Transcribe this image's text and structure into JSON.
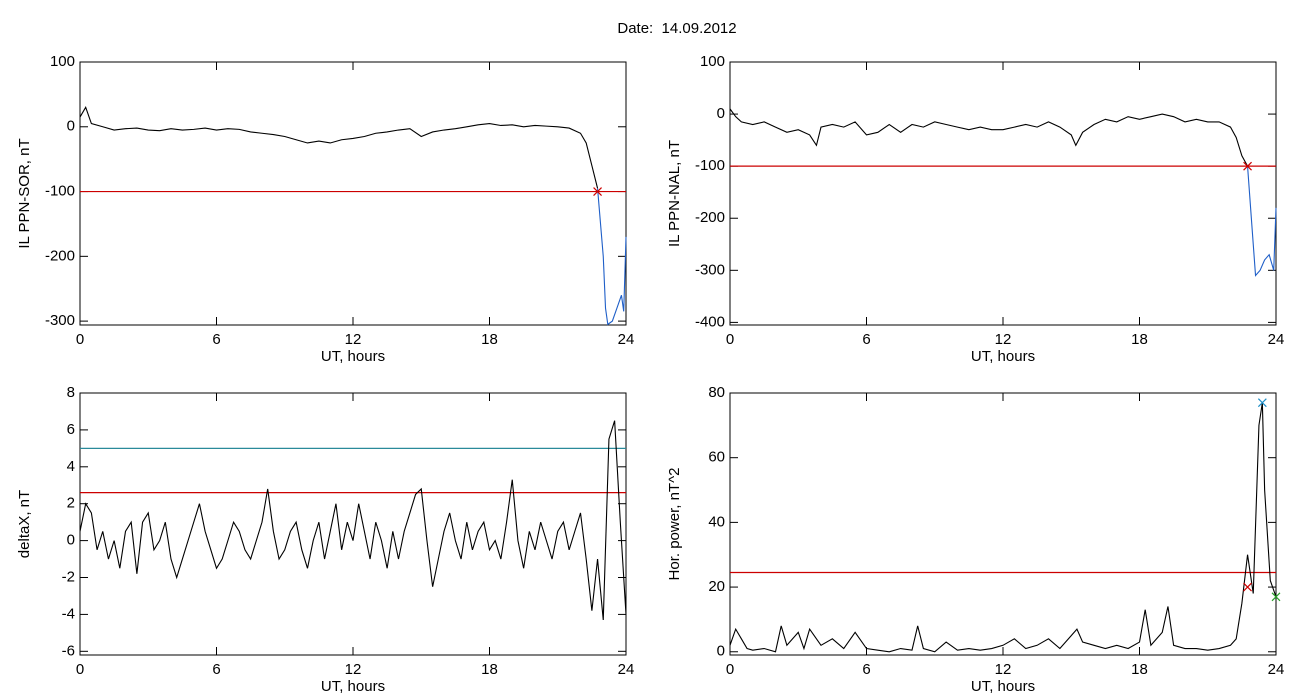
{
  "title": "Date:  14.09.2012",
  "chart_data": [
    {
      "type": "line",
      "xlabel": "UT, hours",
      "ylabel": "IL PPN-SOR, nT",
      "xlim": [
        0,
        24
      ],
      "ylim": [
        -306,
        100
      ],
      "xticks": [
        0,
        6,
        12,
        18,
        24
      ],
      "yticks": [
        -300,
        -200,
        -100,
        0,
        100
      ],
      "series": [
        {
          "color": "#000000",
          "x": [
            0,
            0.25,
            0.5,
            1,
            1.5,
            2,
            2.5,
            3,
            3.5,
            4,
            4.5,
            5,
            5.5,
            6,
            6.5,
            7,
            7.5,
            8,
            8.5,
            9,
            9.5,
            10,
            10.5,
            11,
            11.5,
            12,
            12.5,
            13,
            13.5,
            14,
            14.5,
            15,
            15.5,
            16,
            16.5,
            17,
            17.5,
            18,
            18.5,
            19,
            19.5,
            20,
            20.5,
            21,
            21.5,
            22,
            22.25,
            22.5,
            22.75
          ],
          "values": [
            15,
            30,
            5,
            0,
            -5,
            -3,
            -2,
            -5,
            -6,
            -3,
            -5,
            -4,
            -2,
            -5,
            -3,
            -4,
            -8,
            -10,
            -12,
            -15,
            -20,
            -25,
            -22,
            -25,
            -20,
            -18,
            -15,
            -10,
            -8,
            -5,
            -3,
            -15,
            -8,
            -5,
            -3,
            0,
            3,
            5,
            2,
            3,
            0,
            2,
            1,
            0,
            -2,
            -10,
            -25,
            -60,
            -95
          ]
        },
        {
          "color": "#1f5fc8",
          "x": [
            22.75,
            23,
            23.1,
            23.2,
            23.4,
            23.6,
            23.8,
            23.9,
            24
          ],
          "values": [
            -95,
            -200,
            -280,
            -305,
            -300,
            -280,
            -260,
            -285,
            -170
          ]
        }
      ],
      "hlines": [
        {
          "value": -100,
          "color": "#cc0000"
        }
      ],
      "markers": [
        {
          "x": 22.75,
          "y": -100,
          "color": "#cc0000"
        }
      ]
    },
    {
      "type": "line",
      "xlabel": "UT, hours",
      "ylabel": "IL PPN-NAL, nT",
      "xlim": [
        0,
        24
      ],
      "ylim": [
        -405,
        100
      ],
      "xticks": [
        0,
        6,
        12,
        18,
        24
      ],
      "yticks": [
        -400,
        -300,
        -200,
        -100,
        0,
        100
      ],
      "series": [
        {
          "color": "#000000",
          "x": [
            0,
            0.25,
            0.5,
            1,
            1.5,
            2,
            2.5,
            3,
            3.5,
            3.8,
            4,
            4.5,
            5,
            5.5,
            6,
            6.5,
            7,
            7.5,
            8,
            8.5,
            9,
            9.5,
            10,
            10.5,
            11,
            11.5,
            12,
            12.5,
            13,
            13.5,
            14,
            14.5,
            15,
            15.2,
            15.5,
            16,
            16.5,
            17,
            17.5,
            18,
            18.5,
            19,
            19.5,
            20,
            20.5,
            21,
            21.5,
            22,
            22.25,
            22.5,
            22.75
          ],
          "values": [
            10,
            -5,
            -15,
            -20,
            -15,
            -25,
            -35,
            -30,
            -40,
            -60,
            -25,
            -20,
            -25,
            -15,
            -40,
            -35,
            -20,
            -35,
            -20,
            -25,
            -15,
            -20,
            -25,
            -30,
            -25,
            -30,
            -30,
            -25,
            -20,
            -25,
            -15,
            -25,
            -40,
            -60,
            -35,
            -20,
            -10,
            -15,
            -5,
            -10,
            -5,
            0,
            -5,
            -15,
            -10,
            -15,
            -15,
            -25,
            -45,
            -80,
            -100
          ]
        },
        {
          "color": "#1f5fc8",
          "x": [
            22.75,
            23,
            23.1,
            23.3,
            23.5,
            23.7,
            23.9,
            24
          ],
          "values": [
            -100,
            -250,
            -310,
            -300,
            -280,
            -270,
            -300,
            -180
          ]
        }
      ],
      "hlines": [
        {
          "value": -100,
          "color": "#cc0000"
        }
      ],
      "markers": [
        {
          "x": 22.75,
          "y": -100,
          "color": "#cc0000"
        }
      ]
    },
    {
      "type": "line",
      "xlabel": "UT, hours",
      "ylabel": "deltaX, nT",
      "xlim": [
        0,
        24
      ],
      "ylim": [
        -6.2,
        8
      ],
      "xticks": [
        0,
        6,
        12,
        18,
        24
      ],
      "yticks": [
        -6,
        -4,
        -2,
        0,
        2,
        4,
        6,
        8
      ],
      "series": [
        {
          "color": "#000000",
          "x": [
            0,
            0.25,
            0.5,
            0.75,
            1,
            1.25,
            1.5,
            1.75,
            2,
            2.25,
            2.5,
            2.75,
            3,
            3.25,
            3.5,
            3.75,
            4,
            4.25,
            4.5,
            4.75,
            5,
            5.25,
            5.5,
            5.75,
            6,
            6.25,
            6.5,
            6.75,
            7,
            7.25,
            7.5,
            7.75,
            8,
            8.25,
            8.5,
            8.75,
            9,
            9.25,
            9.5,
            9.75,
            10,
            10.25,
            10.5,
            10.75,
            11,
            11.25,
            11.5,
            11.75,
            12,
            12.25,
            12.5,
            12.75,
            13,
            13.25,
            13.5,
            13.75,
            14,
            14.25,
            14.5,
            14.75,
            15,
            15.25,
            15.5,
            15.75,
            16,
            16.25,
            16.5,
            16.75,
            17,
            17.25,
            17.5,
            17.75,
            18,
            18.25,
            18.5,
            18.75,
            19,
            19.25,
            19.5,
            19.75,
            20,
            20.25,
            20.5,
            20.75,
            21,
            21.25,
            21.5,
            21.75,
            22,
            22.25,
            22.5,
            22.75,
            23,
            23.25,
            23.5,
            23.75,
            24
          ],
          "values": [
            0.5,
            2,
            1.5,
            -0.5,
            0.5,
            -1,
            0,
            -1.5,
            0.5,
            1,
            -1.8,
            1,
            1.5,
            -0.5,
            0,
            1,
            -1,
            -2,
            -1,
            0,
            1,
            2,
            0.5,
            -0.5,
            -1.5,
            -1,
            0,
            1,
            0.5,
            -0.5,
            -1,
            0,
            1,
            2.8,
            0.5,
            -1,
            -0.5,
            0.5,
            1,
            -0.5,
            -1.5,
            0,
            1,
            -1,
            0.5,
            2,
            -0.5,
            1,
            0,
            2,
            0.5,
            -1,
            1,
            0,
            -1.5,
            0.5,
            -1,
            0.5,
            1.5,
            2.5,
            2.8,
            0,
            -2.5,
            -1,
            0.5,
            1.5,
            0,
            -1,
            1,
            -0.5,
            0.5,
            1,
            -0.5,
            0,
            -1,
            1,
            3.3,
            0,
            -1.5,
            0.5,
            -0.5,
            1,
            0,
            -1,
            0.5,
            1,
            -0.5,
            0.5,
            1.5,
            -1,
            -3.8,
            -1,
            -4.3,
            5.5,
            6.5,
            1,
            -4
          ]
        }
      ],
      "hlines": [
        {
          "value": 5,
          "color": "#2a8a9a"
        },
        {
          "value": 2.6,
          "color": "#cc0000"
        }
      ],
      "markers": []
    },
    {
      "type": "line",
      "xlabel": "UT, hours",
      "ylabel": "Hor. power, nT^2",
      "xlim": [
        0,
        24
      ],
      "ylim": [
        -1,
        80
      ],
      "xticks": [
        0,
        6,
        12,
        18,
        24
      ],
      "yticks": [
        0,
        20,
        40,
        60,
        80
      ],
      "series": [
        {
          "color": "#000000",
          "x": [
            0,
            0.25,
            0.5,
            0.75,
            1,
            1.5,
            2,
            2.25,
            2.5,
            3,
            3.25,
            3.5,
            4,
            4.5,
            5,
            5.5,
            6,
            6.5,
            7,
            7.5,
            8,
            8.25,
            8.5,
            9,
            9.5,
            10,
            10.5,
            11,
            11.5,
            12,
            12.5,
            13,
            13.5,
            14,
            14.5,
            15,
            15.25,
            15.5,
            16,
            16.5,
            17,
            17.5,
            18,
            18.25,
            18.5,
            19,
            19.25,
            19.5,
            20,
            20.5,
            21,
            21.5,
            22,
            22.25,
            22.5,
            22.75,
            23,
            23.25,
            23.4,
            23.5,
            23.75,
            24
          ],
          "values": [
            2,
            7,
            4,
            1,
            0.5,
            1,
            0,
            8,
            2,
            6,
            1,
            7,
            2,
            4,
            1,
            6,
            1,
            0.5,
            0,
            1,
            0.5,
            8,
            1,
            0,
            3,
            0.5,
            1,
            0.5,
            1,
            2,
            4,
            1,
            2,
            4,
            1,
            5,
            7,
            3,
            2,
            1,
            2,
            1,
            3,
            13,
            2,
            6,
            14,
            2,
            1,
            1,
            0.5,
            1,
            2,
            4,
            15,
            30,
            18,
            70,
            77,
            50,
            22,
            17
          ]
        }
      ],
      "hlines": [
        {
          "value": 24.5,
          "color": "#cc0000"
        }
      ],
      "markers": [
        {
          "x": 23.4,
          "y": 77,
          "color": "#1f8fc8"
        },
        {
          "x": 22.75,
          "y": 20,
          "color": "#cc0000"
        },
        {
          "x": 24,
          "y": 17,
          "color": "#2aa02a"
        }
      ]
    }
  ]
}
